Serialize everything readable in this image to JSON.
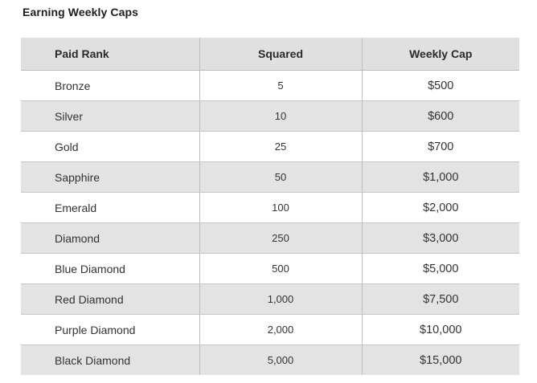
{
  "title": "Earning Weekly Caps",
  "headers": [
    "Paid Rank",
    "Squared",
    "Weekly Cap"
  ],
  "rows": [
    [
      "Bronze",
      "5",
      "$500"
    ],
    [
      "Silver",
      "10",
      "$600"
    ],
    [
      "Gold",
      "25",
      "$700"
    ],
    [
      "Sapphire",
      "50",
      "$1,000"
    ],
    [
      "Emerald",
      "100",
      "$2,000"
    ],
    [
      "Diamond",
      "250",
      "$3,000"
    ],
    [
      "Blue Diamond",
      "500",
      "$5,000"
    ],
    [
      "Red Diamond",
      "1,000",
      "$7,500"
    ],
    [
      "Purple Diamond",
      "2,000",
      "$10,000"
    ],
    [
      "Black Diamond",
      "5,000",
      "$15,000"
    ]
  ]
}
